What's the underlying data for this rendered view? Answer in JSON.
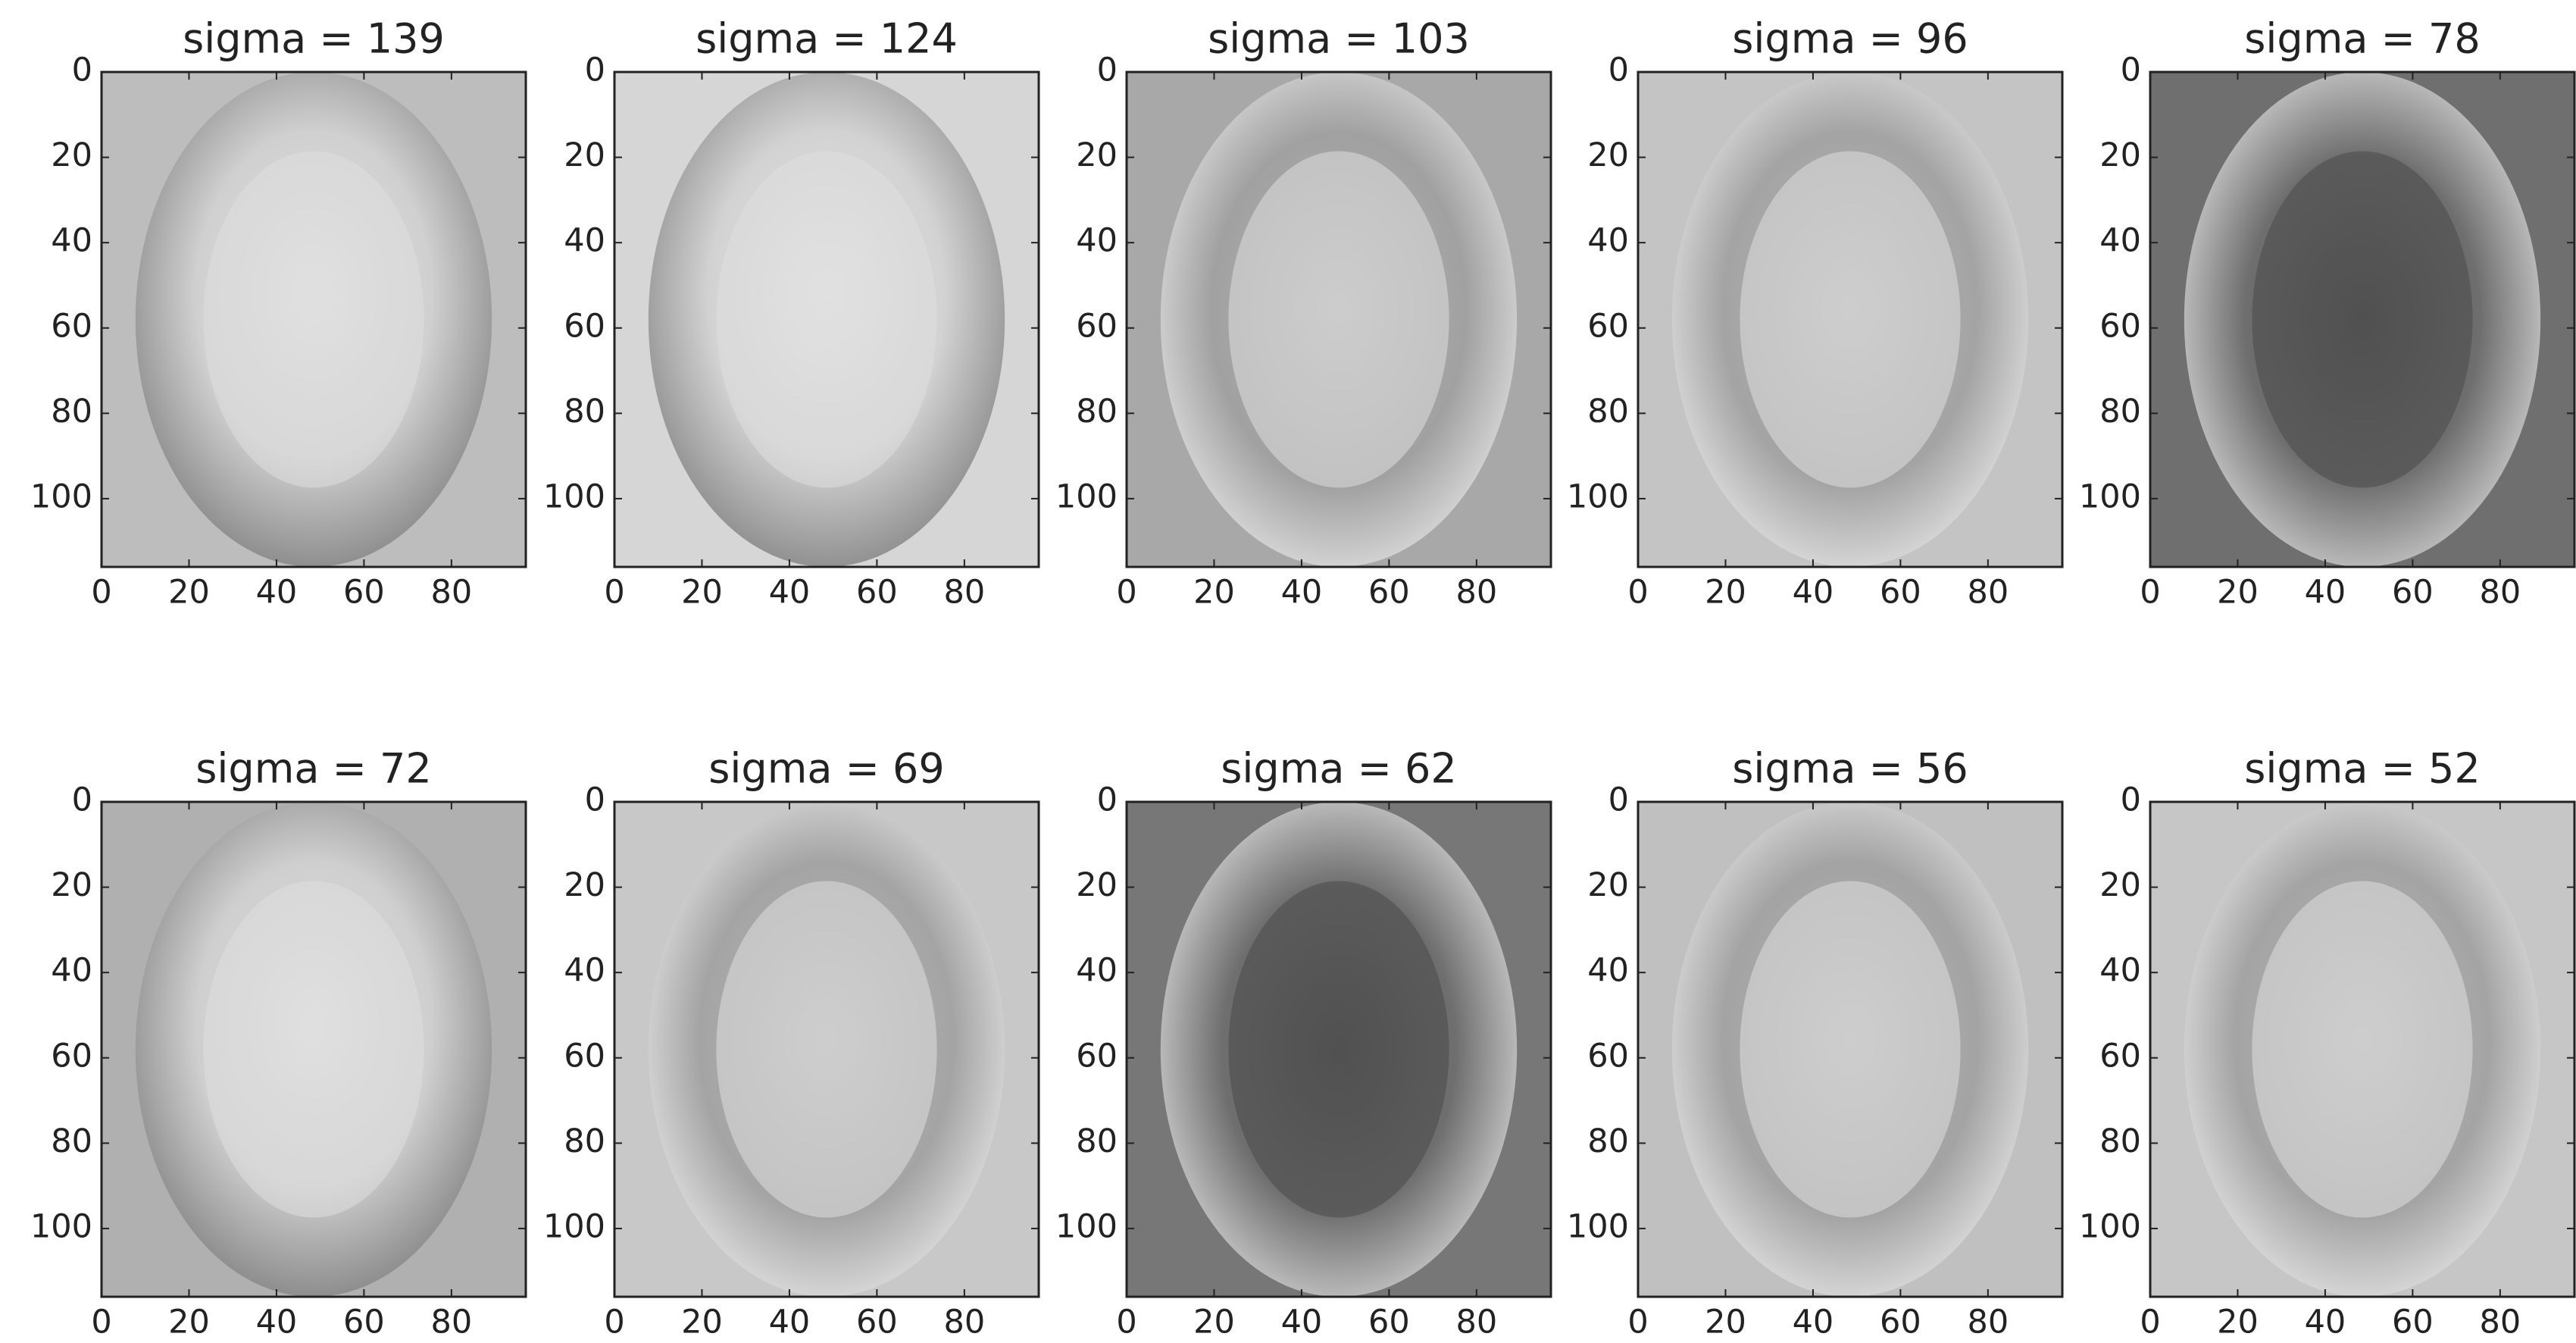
{
  "chart_data": [
    {
      "type": "image",
      "title": "sigma = 139",
      "xlim": [
        0,
        97
      ],
      "ylim": [
        116,
        0
      ],
      "xticks": [
        0,
        20,
        40,
        60,
        80
      ],
      "yticks": [
        0,
        20,
        40,
        60,
        80,
        100
      ]
    },
    {
      "type": "image",
      "title": "sigma = 124",
      "xlim": [
        0,
        97
      ],
      "ylim": [
        116,
        0
      ],
      "xticks": [
        0,
        20,
        40,
        60,
        80
      ],
      "yticks": [
        0,
        20,
        40,
        60,
        80,
        100
      ]
    },
    {
      "type": "image",
      "title": "sigma = 103",
      "xlim": [
        0,
        97
      ],
      "ylim": [
        116,
        0
      ],
      "xticks": [
        0,
        20,
        40,
        60,
        80
      ],
      "yticks": [
        0,
        20,
        40,
        60,
        80,
        100
      ]
    },
    {
      "type": "image",
      "title": "sigma = 96",
      "xlim": [
        0,
        97
      ],
      "ylim": [
        116,
        0
      ],
      "xticks": [
        0,
        20,
        40,
        60,
        80
      ],
      "yticks": [
        0,
        20,
        40,
        60,
        80,
        100
      ]
    },
    {
      "type": "image",
      "title": "sigma = 78",
      "xlim": [
        0,
        97
      ],
      "ylim": [
        116,
        0
      ],
      "xticks": [
        0,
        20,
        40,
        60,
        80
      ],
      "yticks": [
        0,
        20,
        40,
        60,
        80,
        100
      ]
    },
    {
      "type": "image",
      "title": "sigma = 72",
      "xlim": [
        0,
        97
      ],
      "ylim": [
        116,
        0
      ],
      "xticks": [
        0,
        20,
        40,
        60,
        80
      ],
      "yticks": [
        0,
        20,
        40,
        60,
        80,
        100
      ]
    },
    {
      "type": "image",
      "title": "sigma = 69",
      "xlim": [
        0,
        97
      ],
      "ylim": [
        116,
        0
      ],
      "xticks": [
        0,
        20,
        40,
        60,
        80
      ],
      "yticks": [
        0,
        20,
        40,
        60,
        80,
        100
      ]
    },
    {
      "type": "image",
      "title": "sigma = 62",
      "xlim": [
        0,
        97
      ],
      "ylim": [
        116,
        0
      ],
      "xticks": [
        0,
        20,
        40,
        60,
        80
      ],
      "yticks": [
        0,
        20,
        40,
        60,
        80,
        100
      ]
    },
    {
      "type": "image",
      "title": "sigma = 56",
      "xlim": [
        0,
        97
      ],
      "ylim": [
        116,
        0
      ],
      "xticks": [
        0,
        20,
        40,
        60,
        80
      ],
      "yticks": [
        0,
        20,
        40,
        60,
        80,
        100
      ]
    },
    {
      "type": "image",
      "title": "sigma = 52",
      "xlim": [
        0,
        97
      ],
      "ylim": [
        116,
        0
      ],
      "xticks": [
        0,
        20,
        40,
        60,
        80
      ],
      "yticks": [
        0,
        20,
        40,
        60,
        80,
        100
      ]
    }
  ]
}
